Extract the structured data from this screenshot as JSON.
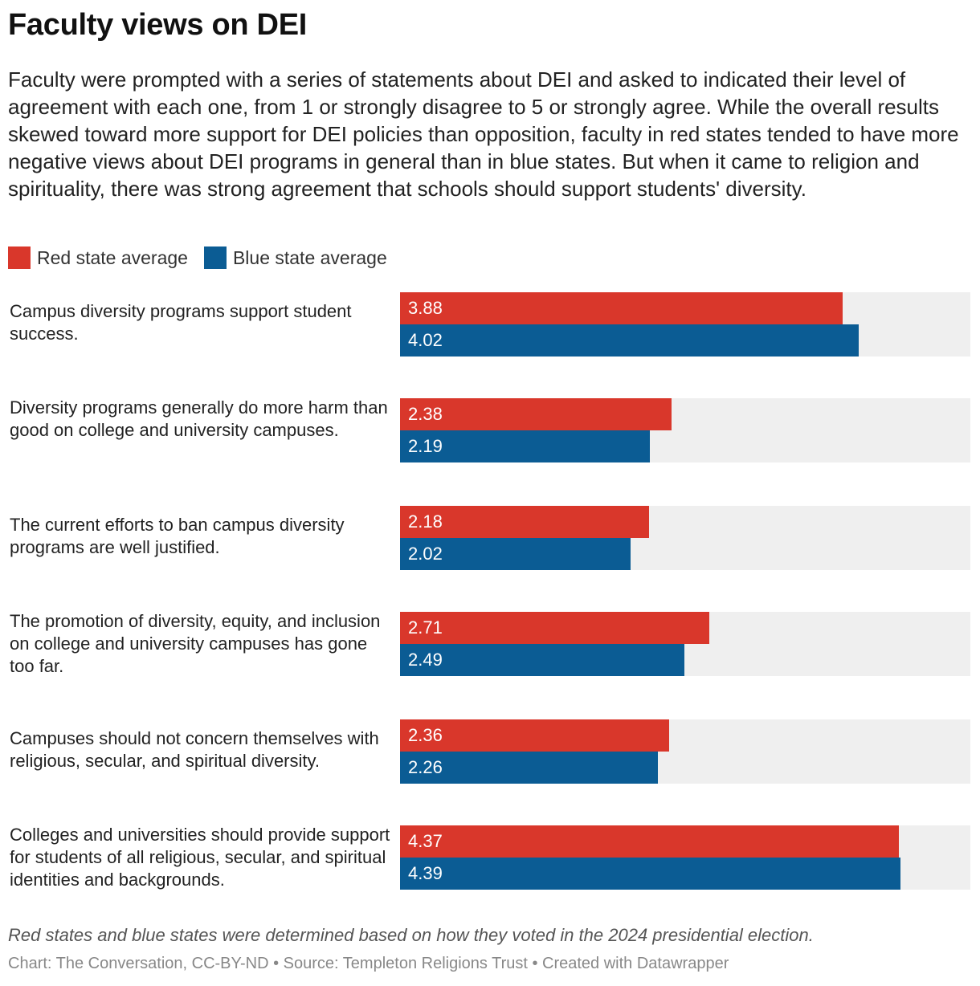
{
  "header": {
    "title": "Faculty views on DEI",
    "subtitle": "Faculty were prompted with a series of statements about DEI and asked to indicated their level of agreement with each one, from 1 or strongly disagree to 5 or strongly agree. While the overall results skewed toward more support for DEI policies than opposition, faculty in red states tended to have more negative views about DEI programs in general than in blue states. But when it came to religion and spirituality, there was strong agreement that schools should support students' diversity."
  },
  "legend": {
    "red_label": "Red state average",
    "blue_label": "Blue state average"
  },
  "colors": {
    "red": "#d9372b",
    "blue": "#0b5c94",
    "track": "#efefef"
  },
  "chart_data": {
    "type": "bar",
    "orientation": "horizontal",
    "xlim": [
      0,
      5
    ],
    "grid": false,
    "legend_position": "top-left",
    "categories": [
      "Campus diversity programs support student success.",
      "Diversity programs generally do more harm than good on college and university campuses.",
      "The current efforts to ban campus diversity programs are well justified.",
      "The promotion of diversity, equity, and inclusion on college and university campuses has gone too far.",
      "Campuses should not concern themselves with religious, secular, and spiritual diversity.",
      "Colleges and universities should provide support for students of all religious, secular, and spiritual identities and backgrounds."
    ],
    "series": [
      {
        "name": "Red state average",
        "values": [
          3.88,
          2.38,
          2.18,
          2.71,
          2.36,
          4.37
        ]
      },
      {
        "name": "Blue state average",
        "values": [
          4.02,
          2.19,
          2.02,
          2.49,
          2.26,
          4.39
        ]
      }
    ]
  },
  "notes": {
    "note": "Red states and blue states were determined based on how they voted in the 2024 presidential election.",
    "footer": "Chart: The Conversation, CC-BY-ND • Source: Templeton Religions Trust • Created with Datawrapper"
  }
}
